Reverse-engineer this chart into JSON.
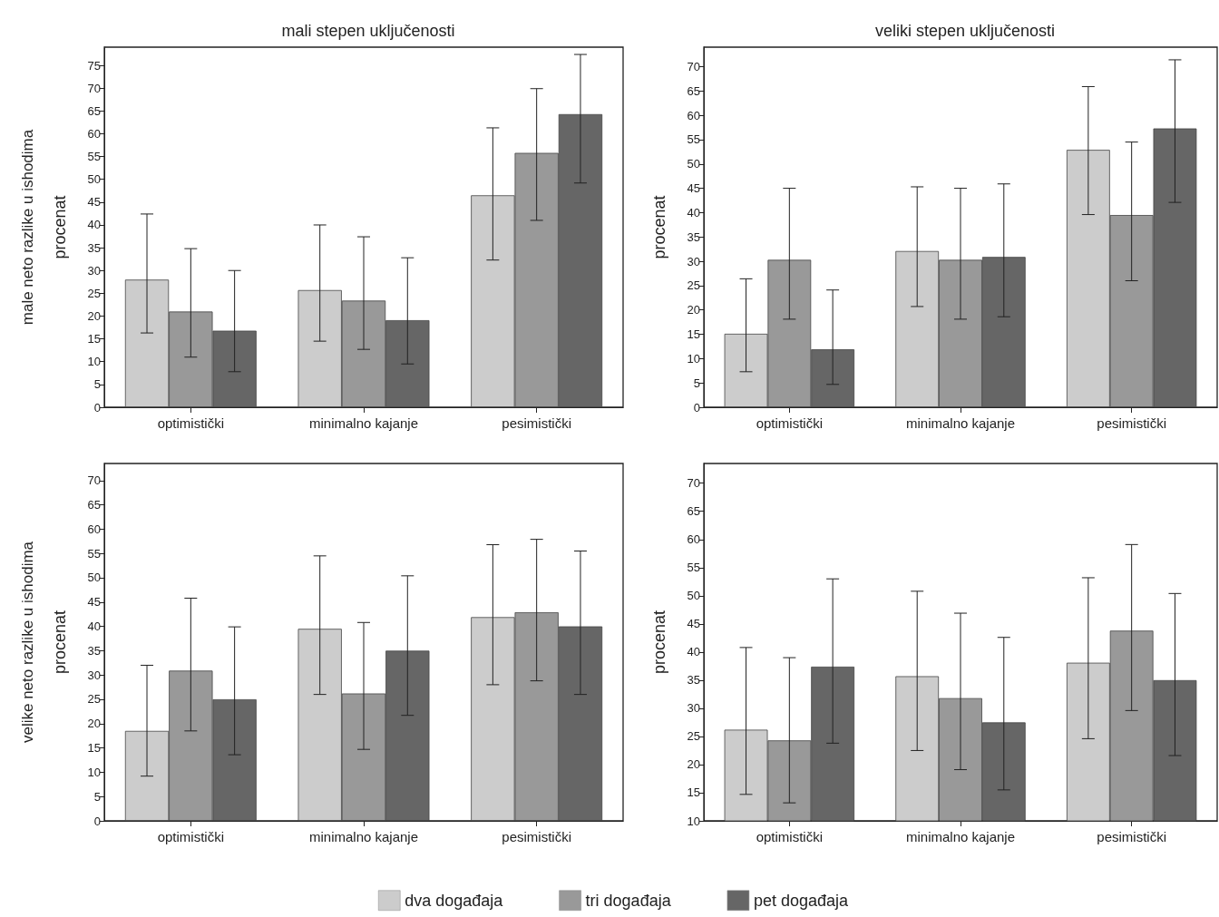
{
  "chart_data": [
    {
      "type": "bar",
      "title": "mali stepen uključenosti",
      "annotations": [
        "male neto razlike u ishodima"
      ],
      "ylabel": "procenat",
      "categories": [
        "optimistički",
        "minimalno kajanje",
        "pesimistički"
      ],
      "ylim": [
        0,
        79
      ],
      "yticks": [
        0,
        5,
        10,
        15,
        20,
        25,
        30,
        35,
        40,
        45,
        50,
        55,
        60,
        65,
        70,
        75
      ],
      "series": [
        {
          "color": "#cccccc",
          "values": [
            28,
            25.7,
            46.5
          ],
          "errors": [
            [
              16.3,
              42.4
            ],
            [
              14.5,
              40
            ],
            [
              32.3,
              61.3
            ]
          ]
        },
        {
          "color": "#999999",
          "values": [
            21,
            23.4,
            55.8
          ],
          "errors": [
            [
              11,
              34.8
            ],
            [
              12.7,
              37.4
            ],
            [
              41,
              69.9
            ]
          ]
        },
        {
          "color": "#666666",
          "values": [
            16.8,
            19.1,
            64.3
          ],
          "errors": [
            [
              7.8,
              30
            ],
            [
              9.5,
              32.8
            ],
            [
              49.2,
              77.4
            ]
          ]
        }
      ]
    },
    {
      "type": "bar",
      "title": "veliki stepen uključenosti",
      "ylabel": "procenat",
      "categories": [
        "optimistički",
        "minimalno kajanje",
        "pesimistički"
      ],
      "ylim": [
        0,
        74
      ],
      "yticks": [
        0,
        5,
        10,
        15,
        20,
        25,
        30,
        35,
        40,
        45,
        50,
        55,
        60,
        65,
        70
      ],
      "series": [
        {
          "color": "#cccccc",
          "values": [
            15.1,
            32.1,
            52.9
          ],
          "errors": [
            [
              7.3,
              26.4
            ],
            [
              20.7,
              45.3
            ],
            [
              39.6,
              65.9
            ]
          ]
        },
        {
          "color": "#999999",
          "values": [
            30.3,
            30.3,
            39.5
          ],
          "errors": [
            [
              18.1,
              45
            ],
            [
              18.1,
              45
            ],
            [
              26,
              54.5
            ]
          ]
        },
        {
          "color": "#666666",
          "values": [
            11.9,
            30.9,
            57.3
          ],
          "errors": [
            [
              4.7,
              24.1
            ],
            [
              18.6,
              45.9
            ],
            [
              42.1,
              71.4
            ]
          ]
        }
      ]
    },
    {
      "type": "bar",
      "annotations": [
        "velike neto razlike u ishodima"
      ],
      "ylabel": "procenat",
      "legend": "bottom",
      "categories": [
        "optimistički",
        "minimalno kajanje",
        "pesimistički"
      ],
      "ylim": [
        0,
        73.5
      ],
      "yticks": [
        0,
        5,
        10,
        15,
        20,
        25,
        30,
        35,
        40,
        45,
        50,
        55,
        60,
        65,
        70
      ],
      "series": [
        {
          "name": "dva događaja",
          "color": "#cccccc",
          "values": [
            18.5,
            39.5,
            41.9
          ],
          "errors": [
            [
              9.2,
              32
            ],
            [
              26,
              54.5
            ],
            [
              28,
              56.8
            ]
          ]
        },
        {
          "name": "tri događaja",
          "color": "#999999",
          "values": [
            30.9,
            26.2,
            42.9
          ],
          "errors": [
            [
              18.5,
              45.8
            ],
            [
              14.7,
              40.8
            ],
            [
              28.8,
              57.9
            ]
          ]
        },
        {
          "name": "pet događaja",
          "color": "#666666",
          "values": [
            25,
            35,
            40
          ],
          "errors": [
            [
              13.6,
              39.9
            ],
            [
              21.7,
              50.4
            ],
            [
              26,
              55.5
            ]
          ]
        }
      ]
    },
    {
      "type": "bar",
      "ylabel": "procenat",
      "categories": [
        "optimistički",
        "minimalno kajanje",
        "pesimistički"
      ],
      "ylim": [
        10,
        73.5
      ],
      "yticks": [
        10,
        15,
        20,
        25,
        30,
        35,
        40,
        45,
        50,
        55,
        60,
        65,
        70
      ],
      "series": [
        {
          "color": "#cccccc",
          "values": [
            26.2,
            35.7,
            38.1
          ],
          "errors": [
            [
              14.7,
              40.8
            ],
            [
              22.5,
              50.8
            ],
            [
              24.6,
              53.2
            ]
          ]
        },
        {
          "color": "#999999",
          "values": [
            24.3,
            31.8,
            43.8
          ],
          "errors": [
            [
              13.2,
              39
            ],
            [
              19.1,
              46.9
            ],
            [
              29.6,
              59.1
            ]
          ]
        },
        {
          "color": "#666666",
          "values": [
            37.4,
            27.5,
            35
          ],
          "errors": [
            [
              23.8,
              53
            ],
            [
              15.5,
              42.6
            ],
            [
              21.6,
              50.4
            ]
          ]
        }
      ]
    }
  ]
}
